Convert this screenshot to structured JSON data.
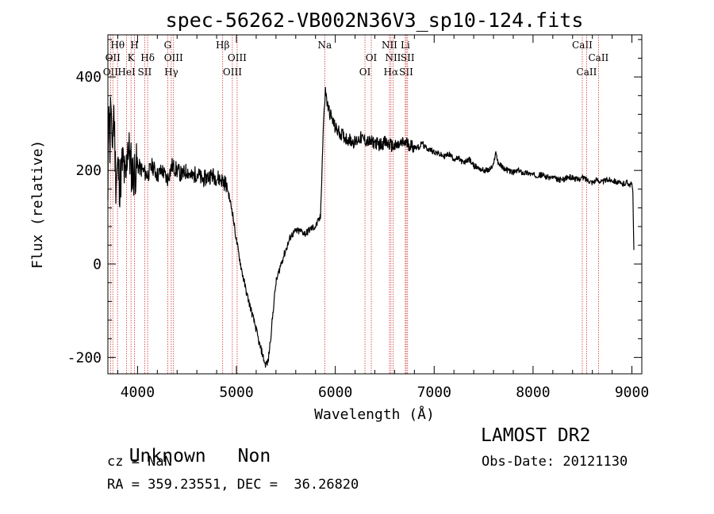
{
  "chart_data": {
    "type": "line",
    "title": "spec-56262-VB002N36V3_sp10-124.fits",
    "xlabel": "Wavelength (Å)",
    "ylabel": "Flux (relative)",
    "xlim": [
      3700,
      9100
    ],
    "ylim": [
      -235,
      490
    ],
    "x_ticks": [
      4000,
      5000,
      6000,
      7000,
      8000,
      9000
    ],
    "y_ticks": [
      -200,
      0,
      200,
      400
    ],
    "grid": false,
    "series": [
      {
        "x": [
          3700,
          3710,
          3720,
          3730,
          3740,
          3760,
          3780,
          3800,
          3820,
          3850,
          3880,
          3900,
          3950,
          4000,
          4050,
          4100,
          4150,
          4200,
          4250,
          4300,
          4350,
          4400,
          4450,
          4500,
          4550,
          4600,
          4650,
          4700,
          4750,
          4800,
          4850,
          4900,
          4930,
          4960,
          5000,
          5050,
          5100,
          5150,
          5200,
          5230,
          5260,
          5290,
          5320,
          5350,
          5380,
          5400,
          5450,
          5500,
          5550,
          5600,
          5650,
          5700,
          5750,
          5800,
          5850,
          5880,
          5900,
          5920,
          5950,
          6000,
          6050,
          6100,
          6150,
          6200,
          6250,
          6300,
          6350,
          6400,
          6450,
          6500,
          6550,
          6600,
          6650,
          6700,
          6750,
          6800,
          6850,
          6880,
          6900,
          6950,
          7000,
          7050,
          7100,
          7150,
          7200,
          7250,
          7300,
          7350,
          7400,
          7450,
          7500,
          7550,
          7600,
          7620,
          7650,
          7700,
          7750,
          7800,
          7850,
          7900,
          7950,
          8000,
          8050,
          8100,
          8150,
          8200,
          8250,
          8300,
          8350,
          8400,
          8450,
          8500,
          8550,
          8600,
          8650,
          8700,
          8750,
          8800,
          8850,
          8900,
          8950,
          8980,
          9000,
          9010,
          9020
        ],
        "y": [
          120,
          380,
          250,
          360,
          230,
          330,
          180,
          210,
          170,
          220,
          170,
          260,
          190,
          210,
          200,
          190,
          210,
          190,
          200,
          180,
          210,
          200,
          190,
          200,
          185,
          195,
          180,
          185,
          190,
          185,
          180,
          170,
          140,
          110,
          50,
          -10,
          -60,
          -100,
          -140,
          -170,
          -190,
          -215,
          -210,
          -150,
          -80,
          -40,
          0,
          30,
          60,
          70,
          70,
          65,
          75,
          80,
          100,
          300,
          370,
          340,
          320,
          290,
          280,
          270,
          265,
          260,
          270,
          265,
          260,
          260,
          255,
          260,
          255,
          250,
          255,
          260,
          255,
          250,
          250,
          260,
          250,
          245,
          240,
          235,
          230,
          235,
          225,
          225,
          215,
          225,
          210,
          205,
          200,
          200,
          210,
          240,
          215,
          205,
          200,
          195,
          200,
          195,
          195,
          190,
          190,
          190,
          185,
          185,
          180,
          180,
          185,
          185,
          180,
          185,
          180,
          175,
          180,
          175,
          180,
          180,
          175,
          170,
          175,
          170,
          170,
          150,
          30
        ]
      }
    ],
    "line_markers": [
      {
        "wavelength": 3727,
        "row": 2,
        "label": "OII"
      },
      {
        "wavelength": 3750,
        "row": 1,
        "label": "OII"
      },
      {
        "wavelength": 3798,
        "row": 0,
        "label": "Hθ"
      },
      {
        "wavelength": 3889,
        "row": 2,
        "label": "HeI"
      },
      {
        "wavelength": 3934,
        "row": 1,
        "label": "K"
      },
      {
        "wavelength": 3969,
        "row": 0,
        "label": "H"
      },
      {
        "wavelength": 4072,
        "row": 2,
        "label": "SII"
      },
      {
        "wavelength": 4102,
        "row": 1,
        "label": "Hδ"
      },
      {
        "wavelength": 4305,
        "row": 0,
        "label": "G"
      },
      {
        "wavelength": 4341,
        "row": 2,
        "label": "Hγ"
      },
      {
        "wavelength": 4364,
        "row": 1,
        "label": "OIII"
      },
      {
        "wavelength": 4861,
        "row": 0,
        "label": "Hβ"
      },
      {
        "wavelength": 4959,
        "row": 2,
        "label": "OIII"
      },
      {
        "wavelength": 5007,
        "row": 1,
        "label": "OIII"
      },
      {
        "wavelength": 5893,
        "row": 0,
        "label": "Na"
      },
      {
        "wavelength": 6300,
        "row": 2,
        "label": "OI"
      },
      {
        "wavelength": 6364,
        "row": 1,
        "label": "OI"
      },
      {
        "wavelength": 6548,
        "row": 0,
        "label": "NII"
      },
      {
        "wavelength": 6563,
        "row": 2,
        "label": "Hα"
      },
      {
        "wavelength": 6584,
        "row": 1,
        "label": "NII"
      },
      {
        "wavelength": 6708,
        "row": 0,
        "label": "Li"
      },
      {
        "wavelength": 6717,
        "row": 2,
        "label": "SII"
      },
      {
        "wavelength": 6731,
        "row": 1,
        "label": "SII"
      },
      {
        "wavelength": 8498,
        "row": 0,
        "label": "CaII"
      },
      {
        "wavelength": 8542,
        "row": 2,
        "label": "CaII"
      },
      {
        "wavelength": 8662,
        "row": 1,
        "label": "CaII"
      }
    ],
    "colors": {
      "spectrum": "#000000",
      "line_marker": "#cc3333"
    }
  },
  "footer": {
    "class_label": "Unknown",
    "subclass_label": "Non",
    "survey": "LAMOST DR2",
    "cz": "cz = NaN",
    "obs_date": "Obs-Date: 20121130",
    "coords": "RA = 359.23551, DEC =  36.26820"
  }
}
